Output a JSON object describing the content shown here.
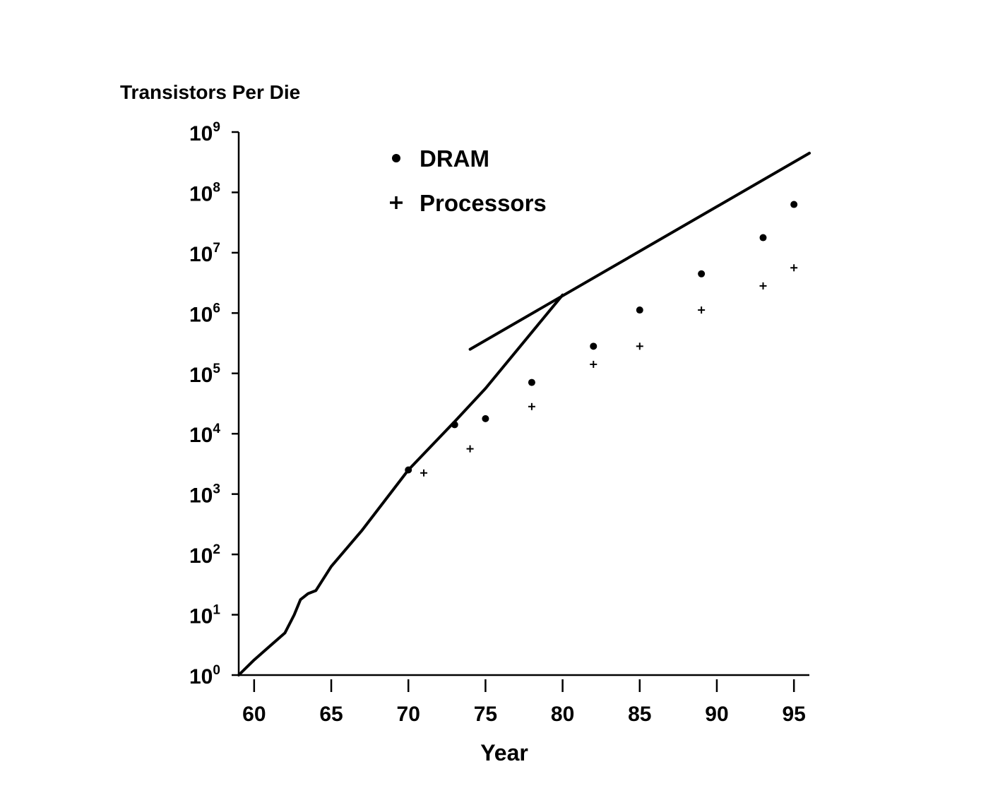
{
  "chart_data": {
    "type": "scatter",
    "title": "",
    "ylabel": "Transistors Per Die",
    "xlabel": "Year",
    "x_ticks": [
      "60",
      "65",
      "70",
      "75",
      "80",
      "85",
      "90",
      "95"
    ],
    "x_tick_values": [
      60,
      65,
      70,
      75,
      80,
      85,
      90,
      95
    ],
    "y_ticks": [
      {
        "base": "10",
        "exp": "0",
        "value": 0
      },
      {
        "base": "10",
        "exp": "1",
        "value": 1
      },
      {
        "base": "10",
        "exp": "2",
        "value": 2
      },
      {
        "base": "10",
        "exp": "3",
        "value": 3
      },
      {
        "base": "10",
        "exp": "4",
        "value": 4
      },
      {
        "base": "10",
        "exp": "5",
        "value": 5
      },
      {
        "base": "10",
        "exp": "6",
        "value": 6
      },
      {
        "base": "10",
        "exp": "7",
        "value": 7
      },
      {
        "base": "10",
        "exp": "8",
        "value": 8
      },
      {
        "base": "10",
        "exp": "9",
        "value": 9
      }
    ],
    "xlim": [
      59,
      96
    ],
    "ylim_log10": [
      0,
      9
    ],
    "y_scale": "log10",
    "legend_position": "top-left",
    "series": [
      {
        "name": "DRAM",
        "marker": "dot",
        "legend_symbol": "•",
        "points": [
          {
            "x": 70,
            "y": 3.4
          },
          {
            "x": 73,
            "y": 4.15
          },
          {
            "x": 75,
            "y": 4.25
          },
          {
            "x": 78,
            "y": 4.85
          },
          {
            "x": 82,
            "y": 5.45
          },
          {
            "x": 85,
            "y": 6.05
          },
          {
            "x": 89,
            "y": 6.65
          },
          {
            "x": 93,
            "y": 7.25
          },
          {
            "x": 95,
            "y": 7.8
          }
        ]
      },
      {
        "name": "Processors",
        "marker": "plus",
        "legend_symbol": "+",
        "points": [
          {
            "x": 71,
            "y": 3.35
          },
          {
            "x": 74,
            "y": 3.75
          },
          {
            "x": 78,
            "y": 4.45
          },
          {
            "x": 82,
            "y": 5.15
          },
          {
            "x": 85,
            "y": 5.45
          },
          {
            "x": 89,
            "y": 6.05
          },
          {
            "x": 93,
            "y": 6.45
          },
          {
            "x": 95,
            "y": 6.75
          }
        ]
      }
    ],
    "trend_lines": [
      {
        "points": [
          {
            "x": 59,
            "y": 0
          },
          {
            "x": 60,
            "y": 0.25
          },
          {
            "x": 62,
            "y": 0.7
          },
          {
            "x": 62.6,
            "y": 1.0
          },
          {
            "x": 63,
            "y": 1.25
          },
          {
            "x": 63.5,
            "y": 1.35
          },
          {
            "x": 64,
            "y": 1.4
          },
          {
            "x": 65,
            "y": 1.8
          },
          {
            "x": 67,
            "y": 2.4
          },
          {
            "x": 70,
            "y": 3.4
          },
          {
            "x": 73,
            "y": 4.2
          },
          {
            "x": 75,
            "y": 4.75
          },
          {
            "x": 80,
            "y": 6.3
          }
        ]
      },
      {
        "points": [
          {
            "x": 74,
            "y": 5.4
          },
          {
            "x": 96,
            "y": 8.65
          }
        ]
      }
    ]
  }
}
